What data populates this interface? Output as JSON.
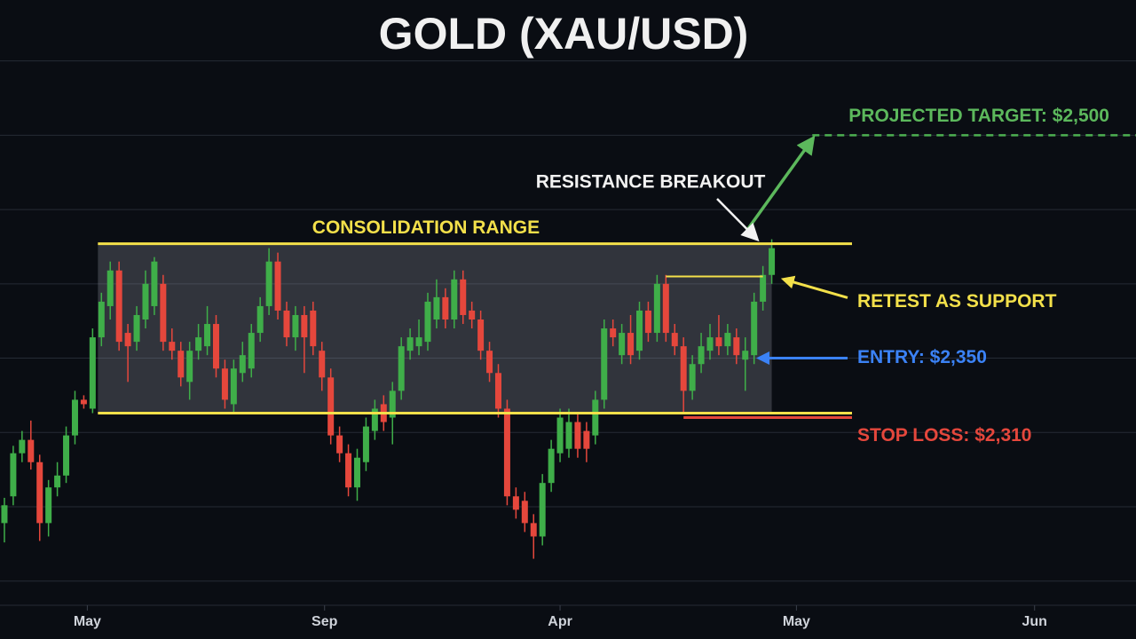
{
  "chart_data": {
    "type": "candlestick",
    "title": "GOLD (XAU/USD)",
    "xticks": [
      {
        "value": 9.4,
        "label": "May"
      },
      {
        "value": 36.3,
        "label": "Sep"
      },
      {
        "value": 63,
        "label": "Apr"
      },
      {
        "value": 89.8,
        "label": "May"
      },
      {
        "value": 116.8,
        "label": "Jun"
      }
    ],
    "xlim": [
      -0.5,
      128.3
    ],
    "ylim": [
      2161,
      2591
    ],
    "y_grid": [
      2200,
      2250,
      2300,
      2350,
      2400,
      2450,
      2500,
      2550
    ],
    "colors": {
      "up": "#3fae49",
      "down": "#e5473c"
    },
    "open": [
      2239,
      2257,
      2286,
      2295,
      2280,
      2239,
      2263,
      2271,
      2298,
      2322,
      2316,
      2364,
      2385,
      2409,
      2367,
      2361,
      2376,
      2385,
      2400,
      2361,
      2355,
      2334,
      2355,
      2358,
      2373,
      2343,
      2319,
      2340,
      2343,
      2367,
      2385,
      2415,
      2382,
      2364,
      2379,
      2382,
      2355,
      2337,
      2298,
      2286,
      2263,
      2280,
      2301,
      2319,
      2310,
      2328,
      2355,
      2358,
      2361,
      2376,
      2391,
      2376,
      2403,
      2382,
      2376,
      2355,
      2340,
      2316,
      2257,
      2254,
      2239,
      2230,
      2266,
      2286,
      2289,
      2307,
      2301,
      2298,
      2322,
      2370,
      2352,
      2367,
      2355,
      2382,
      2367,
      2400,
      2367,
      2358,
      2328,
      2346,
      2355,
      2364,
      2358,
      2364,
      2349,
      2352,
      2388,
      2406
    ],
    "high": [
      2256,
      2291,
      2301,
      2308,
      2285,
      2268,
      2280,
      2304,
      2328,
      2325,
      2370,
      2394,
      2415,
      2415,
      2373,
      2385,
      2409,
      2418,
      2406,
      2370,
      2361,
      2361,
      2373,
      2385,
      2379,
      2349,
      2349,
      2361,
      2373,
      2391,
      2424,
      2421,
      2388,
      2385,
      2385,
      2388,
      2361,
      2343,
      2304,
      2292,
      2289,
      2310,
      2322,
      2325,
      2334,
      2364,
      2370,
      2376,
      2394,
      2403,
      2397,
      2409,
      2409,
      2388,
      2382,
      2361,
      2346,
      2322,
      2263,
      2260,
      2245,
      2272,
      2295,
      2316,
      2316,
      2313,
      2307,
      2328,
      2376,
      2376,
      2373,
      2379,
      2388,
      2388,
      2406,
      2406,
      2373,
      2364,
      2352,
      2367,
      2373,
      2379,
      2373,
      2370,
      2364,
      2394,
      2412,
      2430
    ],
    "low": [
      2226,
      2251,
      2280,
      2275,
      2227,
      2230,
      2257,
      2266,
      2292,
      2316,
      2313,
      2358,
      2376,
      2355,
      2334,
      2355,
      2370,
      2379,
      2355,
      2349,
      2331,
      2322,
      2349,
      2352,
      2337,
      2316,
      2313,
      2334,
      2337,
      2361,
      2379,
      2376,
      2358,
      2355,
      2340,
      2352,
      2328,
      2292,
      2280,
      2257,
      2254,
      2274,
      2295,
      2301,
      2292,
      2322,
      2349,
      2352,
      2355,
      2370,
      2370,
      2370,
      2373,
      2370,
      2349,
      2334,
      2310,
      2251,
      2242,
      2233,
      2215,
      2224,
      2260,
      2280,
      2283,
      2283,
      2280,
      2292,
      2316,
      2358,
      2346,
      2346,
      2349,
      2361,
      2361,
      2361,
      2352,
      2313,
      2322,
      2340,
      2349,
      2352,
      2352,
      2346,
      2328,
      2346,
      2382,
      2400
    ],
    "close": [
      2251,
      2286,
      2295,
      2280,
      2239,
      2263,
      2271,
      2298,
      2322,
      2319,
      2364,
      2388,
      2409,
      2361,
      2358,
      2379,
      2400,
      2415,
      2361,
      2355,
      2337,
      2355,
      2364,
      2373,
      2343,
      2322,
      2343,
      2352,
      2367,
      2385,
      2415,
      2382,
      2364,
      2379,
      2364,
      2358,
      2337,
      2298,
      2286,
      2263,
      2283,
      2304,
      2316,
      2307,
      2328,
      2358,
      2364,
      2364,
      2388,
      2391,
      2376,
      2403,
      2379,
      2376,
      2355,
      2340,
      2316,
      2257,
      2248,
      2239,
      2230,
      2266,
      2289,
      2310,
      2307,
      2289,
      2289,
      2322,
      2370,
      2364,
      2367,
      2352,
      2382,
      2367,
      2400,
      2367,
      2358,
      2328,
      2346,
      2358,
      2364,
      2358,
      2367,
      2352,
      2355,
      2388,
      2406,
      2424
    ],
    "consolidation": {
      "label": "CONSOLIDATION RANGE",
      "top": 2427,
      "bottom": 2313,
      "start": 10.6,
      "end": 87,
      "line_end": 96.1
    },
    "retest": {
      "label": "RETEST AS SUPPORT",
      "value": 2405,
      "start": 75,
      "end": 86
    },
    "breakout_label": "RESISTANCE BREAKOUT",
    "entry": {
      "label": "ENTRY: $2,350",
      "value": 2350
    },
    "stop_loss": {
      "label": "STOP LOSS: $2,310",
      "value": 2310,
      "start": 77,
      "end": 96.1
    },
    "target": {
      "label": "PROJECTED TARGET: $2,500",
      "value": 2500,
      "start": 91.6
    }
  }
}
